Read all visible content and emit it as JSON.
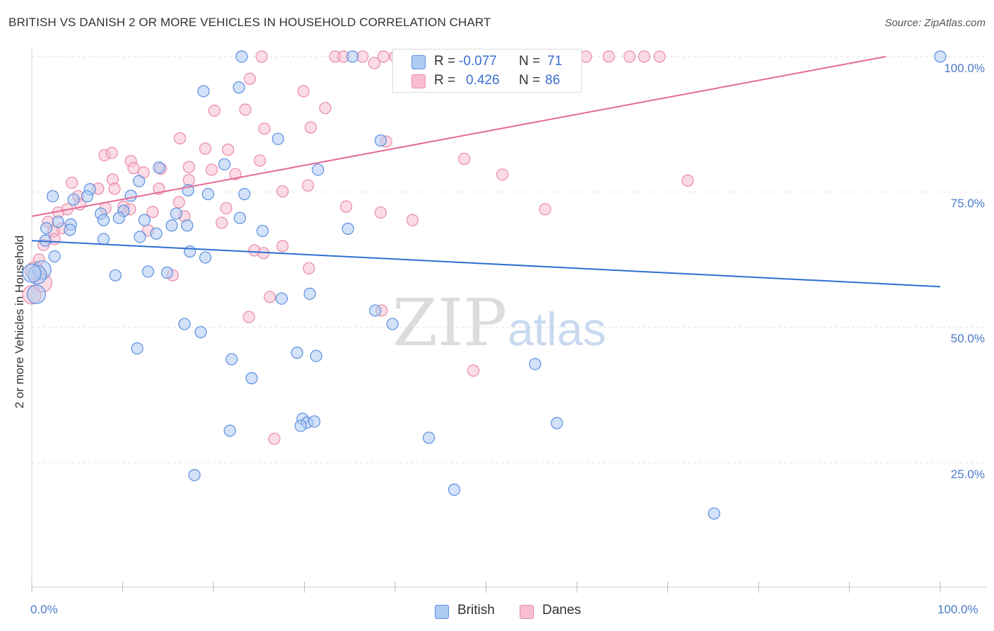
{
  "title": "BRITISH VS DANISH 2 OR MORE VEHICLES IN HOUSEHOLD CORRELATION CHART",
  "source": "Source: ZipAtlas.com",
  "watermark": {
    "zip": "ZIP",
    "atlas": "atlas"
  },
  "legend_top": {
    "rows": [
      {
        "r_label": "R =",
        "r_value": "-0.077",
        "n_label": "N =",
        "n_value": "71"
      },
      {
        "r_label": "R =",
        "r_value": "0.426",
        "n_label": "N =",
        "n_value": "86"
      }
    ]
  },
  "legend_bottom": {
    "british": "British",
    "danes": "Danes"
  },
  "chart_data": {
    "type": "scatter",
    "title": "BRITISH VS DANISH 2 OR MORE VEHICLES IN HOUSEHOLD CORRELATION CHART",
    "xlabel": "",
    "ylabel": "2 or more Vehicles in Household",
    "xlim": [
      0,
      100
    ],
    "ylim": [
      0,
      105
    ],
    "x_tick_labels": [
      "0.0%",
      "100.0%"
    ],
    "y_tick_labels": [
      "25.0%",
      "50.0%",
      "75.0%",
      "100.0%"
    ],
    "y_tick_values": [
      25,
      50,
      75,
      100
    ],
    "grid": true,
    "legend_position": "top-center",
    "colors": {
      "british_fill": "#aecbf2",
      "british_stroke": "#5b8fe0",
      "british_line": "#2e6fd0",
      "danes_fill": "#f7bfd0",
      "danes_stroke": "#e98aa8",
      "danes_line": "#e56a96"
    },
    "series": [
      {
        "name": "British",
        "r": -0.077,
        "n": 71,
        "trend": [
          [
            0,
            66
          ],
          [
            100,
            57.5
          ]
        ],
        "points": [
          [
            23.1,
            100
          ],
          [
            35.3,
            100
          ],
          [
            50,
            100
          ],
          [
            100,
            100
          ],
          [
            18.9,
            93.6
          ],
          [
            22.8,
            94.3
          ],
          [
            27.1,
            84.8
          ],
          [
            38.4,
            84.5
          ],
          [
            14,
            79.5
          ],
          [
            21.2,
            80.1
          ],
          [
            31.5,
            79.1
          ],
          [
            6.4,
            75.5
          ],
          [
            10.9,
            74.3
          ],
          [
            17.2,
            75.3
          ],
          [
            19.4,
            74.6
          ],
          [
            23.4,
            74.6
          ],
          [
            4.6,
            73.6
          ],
          [
            6.1,
            74.2
          ],
          [
            2.3,
            74.2
          ],
          [
            7.6,
            71
          ],
          [
            10.1,
            71.5
          ],
          [
            15.9,
            71
          ],
          [
            7.9,
            69.8
          ],
          [
            4.3,
            69
          ],
          [
            2.9,
            69.5
          ],
          [
            1.6,
            68.3
          ],
          [
            12.4,
            69.8
          ],
          [
            17.1,
            68.8
          ],
          [
            22.9,
            70.2
          ],
          [
            34.8,
            68.2
          ],
          [
            2.5,
            63.1
          ],
          [
            7.9,
            66.3
          ],
          [
            11.9,
            66.7
          ],
          [
            13.7,
            67.3
          ],
          [
            15.4,
            68.8
          ],
          [
            19.1,
            62.9
          ],
          [
            14.9,
            60.1
          ],
          [
            12.8,
            60.3
          ],
          [
            1.1,
            60.6
          ],
          [
            0.6,
            59.7
          ],
          [
            0.5,
            56.1
          ],
          [
            9.2,
            59.6
          ],
          [
            27.5,
            55.3
          ],
          [
            30.6,
            56.2
          ],
          [
            37.8,
            53.1
          ],
          [
            39.7,
            50.6
          ],
          [
            16.8,
            50.6
          ],
          [
            18.6,
            49.1
          ],
          [
            11.6,
            46.1
          ],
          [
            22,
            44.1
          ],
          [
            29.2,
            45.3
          ],
          [
            31.3,
            44.7
          ],
          [
            55.4,
            43.2
          ],
          [
            24.2,
            40.6
          ],
          [
            29.8,
            33.1
          ],
          [
            30.3,
            32.4
          ],
          [
            31.1,
            32.6
          ],
          [
            57.8,
            32.3
          ],
          [
            21.8,
            30.9
          ],
          [
            29.6,
            31.8
          ],
          [
            43.7,
            29.6
          ],
          [
            17.9,
            22.7
          ],
          [
            46.5,
            20
          ],
          [
            75.1,
            15.6
          ],
          [
            0,
            60
          ],
          [
            1.5,
            66
          ],
          [
            4.2,
            68
          ],
          [
            11.8,
            77
          ],
          [
            17.4,
            64
          ],
          [
            25.4,
            67.8
          ],
          [
            9.6,
            70.2
          ]
        ]
      },
      {
        "name": "Danes",
        "r": 0.426,
        "n": 86,
        "trend": [
          [
            0,
            70.5
          ],
          [
            94,
            100
          ]
        ],
        "points": [
          [
            25.3,
            100
          ],
          [
            33.4,
            100
          ],
          [
            34.3,
            100
          ],
          [
            36.4,
            100
          ],
          [
            38.7,
            100
          ],
          [
            40,
            100
          ],
          [
            48.4,
            100
          ],
          [
            50.7,
            100
          ],
          [
            52.5,
            100
          ],
          [
            54.3,
            100
          ],
          [
            56.1,
            100
          ],
          [
            58.2,
            100
          ],
          [
            61,
            100
          ],
          [
            63.5,
            100
          ],
          [
            65.8,
            100
          ],
          [
            67.4,
            100
          ],
          [
            69.1,
            100
          ],
          [
            37.7,
            98.8
          ],
          [
            24,
            95.9
          ],
          [
            29.9,
            93.6
          ],
          [
            32.3,
            90.5
          ],
          [
            20.1,
            90
          ],
          [
            23.5,
            90.2
          ],
          [
            25.6,
            86.7
          ],
          [
            30.7,
            86.9
          ],
          [
            16.3,
            84.9
          ],
          [
            19.1,
            83
          ],
          [
            21.6,
            82.8
          ],
          [
            8,
            81.8
          ],
          [
            8.8,
            82.2
          ],
          [
            10.9,
            80.7
          ],
          [
            25.1,
            80.8
          ],
          [
            39,
            84.3
          ],
          [
            47.6,
            81.1
          ],
          [
            11.2,
            79.4
          ],
          [
            12.3,
            78.6
          ],
          [
            14.2,
            79.3
          ],
          [
            17.3,
            79.6
          ],
          [
            19.8,
            79.1
          ],
          [
            22.4,
            78.3
          ],
          [
            51.8,
            78.2
          ],
          [
            72.2,
            77.1
          ],
          [
            8.9,
            77.3
          ],
          [
            17.3,
            77.2
          ],
          [
            4.4,
            76.7
          ],
          [
            7.3,
            75.6
          ],
          [
            9.1,
            75.6
          ],
          [
            14,
            75.6
          ],
          [
            27.6,
            75.1
          ],
          [
            30.4,
            76.2
          ],
          [
            5.1,
            74.2
          ],
          [
            5.3,
            72.7
          ],
          [
            10.1,
            72.3
          ],
          [
            10.8,
            71.8
          ],
          [
            13.3,
            71.3
          ],
          [
            16.8,
            70.5
          ],
          [
            21.4,
            72
          ],
          [
            3.9,
            71.8
          ],
          [
            2.9,
            71.2
          ],
          [
            8.1,
            72
          ],
          [
            34.6,
            72.3
          ],
          [
            38.4,
            71.2
          ],
          [
            41.9,
            69.8
          ],
          [
            56.5,
            71.8
          ],
          [
            20.9,
            69.3
          ],
          [
            12.8,
            67.9
          ],
          [
            1.8,
            69.5
          ],
          [
            3.3,
            68.3
          ],
          [
            2.4,
            67.7
          ],
          [
            2.5,
            66.3
          ],
          [
            1.3,
            65.2
          ],
          [
            27.6,
            65
          ],
          [
            24.5,
            64.2
          ],
          [
            25.5,
            63.7
          ],
          [
            30.5,
            60.9
          ],
          [
            15.5,
            59.6
          ],
          [
            0.8,
            62.5
          ],
          [
            0.3,
            60.4
          ],
          [
            26.2,
            55.6
          ],
          [
            38.5,
            53.1
          ],
          [
            23.9,
            51.9
          ],
          [
            48.6,
            42
          ],
          [
            26.7,
            29.4
          ],
          [
            0,
            56
          ],
          [
            1.2,
            58.2
          ],
          [
            16.2,
            73.1
          ]
        ]
      }
    ]
  }
}
